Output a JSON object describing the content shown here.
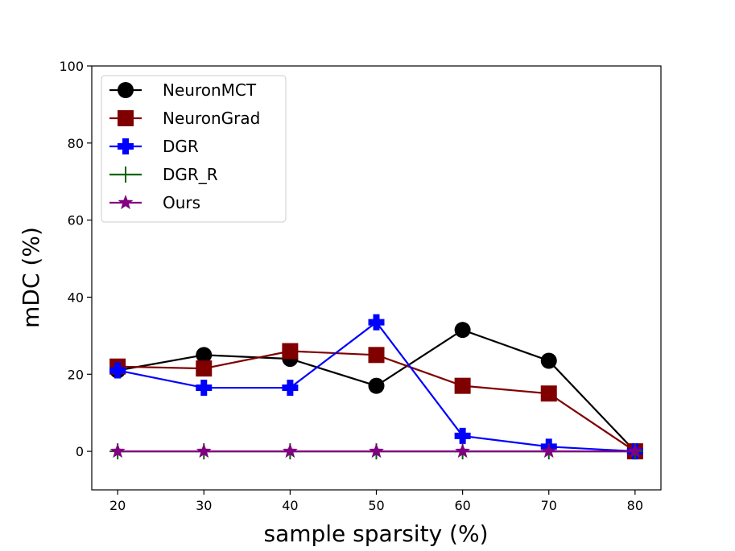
{
  "chart_data": {
    "type": "line",
    "title": "",
    "xlabel": "sample sparsity (%)",
    "ylabel": "mDC (%)",
    "x": [
      20,
      30,
      40,
      50,
      60,
      70,
      80
    ],
    "xticks": [
      "20",
      "30",
      "40",
      "50",
      "60",
      "70",
      "80"
    ],
    "yticks": [
      "0",
      "20",
      "40",
      "60",
      "80",
      "100"
    ],
    "xlim": [
      17,
      83
    ],
    "ylim": [
      -10,
      100
    ],
    "grid": false,
    "legend_position": "top-left",
    "series": [
      {
        "name": "NeuronMCT",
        "color": "#000000",
        "marker": "circle",
        "values": [
          21,
          25,
          24,
          17,
          31.5,
          23.5,
          0
        ]
      },
      {
        "name": "NeuronGrad",
        "color": "#800000",
        "marker": "square",
        "values": [
          22,
          21.5,
          26,
          25,
          17,
          15,
          0
        ]
      },
      {
        "name": "DGR",
        "color": "#0000ff",
        "marker": "plus-filled",
        "values": [
          21,
          16.5,
          16.5,
          33.5,
          4,
          1.2,
          0
        ]
      },
      {
        "name": "DGR_R",
        "color": "#006400",
        "marker": "plus",
        "values": [
          0,
          0,
          0,
          0,
          0,
          0,
          0
        ]
      },
      {
        "name": "Ours",
        "color": "#800080",
        "marker": "star",
        "values": [
          0,
          0,
          0,
          0,
          0,
          0,
          0
        ]
      }
    ]
  }
}
